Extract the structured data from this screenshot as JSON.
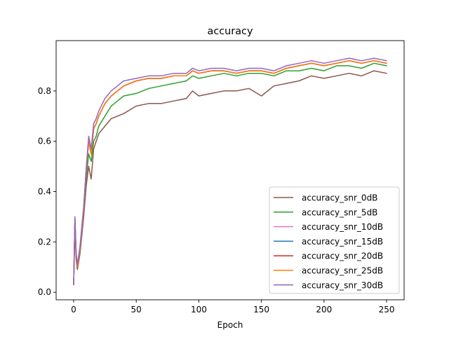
{
  "chart_data": {
    "type": "line",
    "title": "accuracy",
    "xlabel": "Epoch",
    "ylabel": "",
    "xlim": [
      -14,
      264
    ],
    "ylim": [
      -0.03,
      1.0
    ],
    "xticks": [
      0,
      50,
      100,
      150,
      200,
      250
    ],
    "xtick_labels": [
      "0",
      "50",
      "100",
      "150",
      "200",
      "250"
    ],
    "yticks": [
      0.0,
      0.2,
      0.4,
      0.6,
      0.8
    ],
    "ytick_labels": [
      "0.0",
      "0.2",
      "0.4",
      "0.6",
      "0.8"
    ],
    "grid": false,
    "legend_position": "lower-right",
    "x": [
      0,
      1,
      2,
      3,
      5,
      8,
      10,
      12,
      14,
      16,
      18,
      20,
      25,
      30,
      35,
      40,
      50,
      60,
      70,
      80,
      90,
      95,
      100,
      110,
      120,
      130,
      140,
      150,
      160,
      170,
      180,
      190,
      200,
      210,
      220,
      230,
      240,
      250
    ],
    "series": [
      {
        "name": "accuracy_snr_0dB",
        "color": "#8c564b",
        "values": [
          0.03,
          0.27,
          0.13,
          0.09,
          0.15,
          0.3,
          0.42,
          0.5,
          0.45,
          0.57,
          0.6,
          0.63,
          0.66,
          0.69,
          0.7,
          0.71,
          0.74,
          0.75,
          0.75,
          0.76,
          0.77,
          0.8,
          0.78,
          0.79,
          0.8,
          0.8,
          0.81,
          0.78,
          0.82,
          0.83,
          0.84,
          0.86,
          0.85,
          0.86,
          0.87,
          0.86,
          0.88,
          0.87
        ]
      },
      {
        "name": "accuracy_snr_5dB",
        "color": "#2ca02c",
        "values": [
          0.03,
          0.28,
          0.14,
          0.1,
          0.16,
          0.32,
          0.45,
          0.55,
          0.52,
          0.6,
          0.62,
          0.66,
          0.7,
          0.74,
          0.76,
          0.78,
          0.79,
          0.81,
          0.82,
          0.83,
          0.84,
          0.86,
          0.85,
          0.86,
          0.87,
          0.86,
          0.87,
          0.87,
          0.86,
          0.88,
          0.88,
          0.89,
          0.88,
          0.9,
          0.9,
          0.89,
          0.91,
          0.9
        ]
      },
      {
        "name": "accuracy_snr_10dB",
        "color": "#e377c2",
        "values": [
          0.03,
          0.29,
          0.15,
          0.1,
          0.17,
          0.33,
          0.48,
          0.6,
          0.55,
          0.65,
          0.67,
          0.7,
          0.75,
          0.78,
          0.8,
          0.82,
          0.84,
          0.85,
          0.85,
          0.86,
          0.86,
          0.88,
          0.87,
          0.88,
          0.88,
          0.87,
          0.88,
          0.88,
          0.87,
          0.89,
          0.9,
          0.91,
          0.9,
          0.91,
          0.92,
          0.91,
          0.92,
          0.91
        ]
      },
      {
        "name": "accuracy_snr_15dB",
        "color": "#1f77b4",
        "values": [
          0.03,
          0.29,
          0.15,
          0.1,
          0.17,
          0.33,
          0.48,
          0.6,
          0.55,
          0.65,
          0.67,
          0.7,
          0.75,
          0.78,
          0.8,
          0.82,
          0.84,
          0.85,
          0.85,
          0.86,
          0.86,
          0.88,
          0.87,
          0.88,
          0.88,
          0.87,
          0.88,
          0.88,
          0.87,
          0.89,
          0.9,
          0.91,
          0.9,
          0.91,
          0.92,
          0.91,
          0.92,
          0.91
        ]
      },
      {
        "name": "accuracy_snr_20dB",
        "color": "#d62728",
        "values": [
          0.03,
          0.29,
          0.15,
          0.1,
          0.17,
          0.33,
          0.48,
          0.6,
          0.55,
          0.65,
          0.67,
          0.7,
          0.75,
          0.78,
          0.8,
          0.82,
          0.84,
          0.85,
          0.85,
          0.86,
          0.86,
          0.88,
          0.87,
          0.88,
          0.88,
          0.87,
          0.88,
          0.88,
          0.87,
          0.89,
          0.9,
          0.91,
          0.9,
          0.91,
          0.92,
          0.91,
          0.92,
          0.91
        ]
      },
      {
        "name": "accuracy_snr_25dB",
        "color": "#ff7f0e",
        "values": [
          0.03,
          0.29,
          0.15,
          0.1,
          0.17,
          0.33,
          0.48,
          0.6,
          0.55,
          0.65,
          0.67,
          0.7,
          0.75,
          0.78,
          0.8,
          0.82,
          0.84,
          0.85,
          0.85,
          0.86,
          0.86,
          0.88,
          0.87,
          0.88,
          0.88,
          0.87,
          0.88,
          0.88,
          0.87,
          0.89,
          0.9,
          0.91,
          0.9,
          0.91,
          0.92,
          0.91,
          0.92,
          0.91
        ]
      },
      {
        "name": "accuracy_snr_30dB",
        "color": "#9467bd",
        "values": [
          0.03,
          0.3,
          0.16,
          0.11,
          0.18,
          0.34,
          0.49,
          0.62,
          0.57,
          0.67,
          0.69,
          0.72,
          0.77,
          0.8,
          0.82,
          0.84,
          0.85,
          0.86,
          0.86,
          0.87,
          0.87,
          0.89,
          0.88,
          0.89,
          0.89,
          0.88,
          0.89,
          0.89,
          0.88,
          0.9,
          0.91,
          0.92,
          0.91,
          0.92,
          0.93,
          0.92,
          0.93,
          0.92
        ]
      }
    ]
  }
}
